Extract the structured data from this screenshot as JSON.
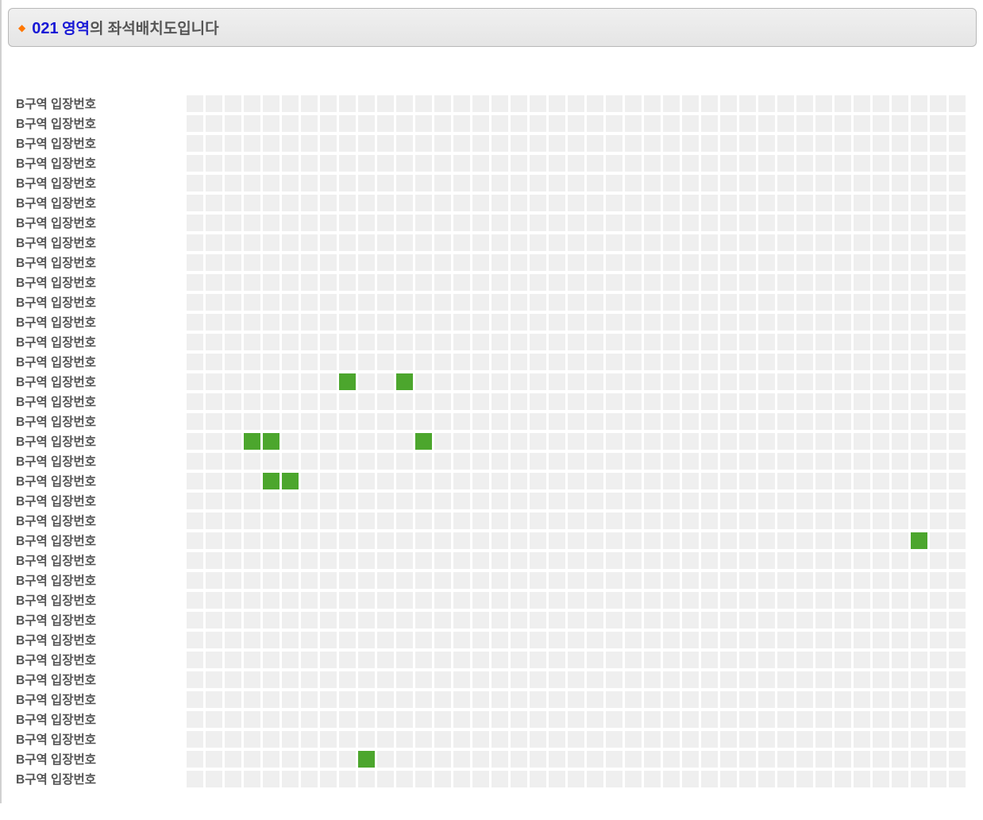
{
  "header": {
    "zone_code": "021",
    "zone_label": "영역",
    "title_rest": "의 좌석배치도입니다"
  },
  "seat_map": {
    "row_label": "B구역 입장번호",
    "row_count": 35,
    "cols": 41,
    "colors": {
      "seat_default": "#efefef",
      "seat_available": "#4ca62d",
      "row_label_color": "#555555",
      "header_border": "#b8b8b8",
      "zone_code_color": "#1818d6",
      "bullet_color": "#ff7700"
    },
    "available_seats": [
      {
        "row": 14,
        "col": 8
      },
      {
        "row": 14,
        "col": 11
      },
      {
        "row": 17,
        "col": 3
      },
      {
        "row": 17,
        "col": 4
      },
      {
        "row": 17,
        "col": 12
      },
      {
        "row": 19,
        "col": 4
      },
      {
        "row": 19,
        "col": 5
      },
      {
        "row": 22,
        "col": 38
      },
      {
        "row": 33,
        "col": 9
      }
    ]
  }
}
